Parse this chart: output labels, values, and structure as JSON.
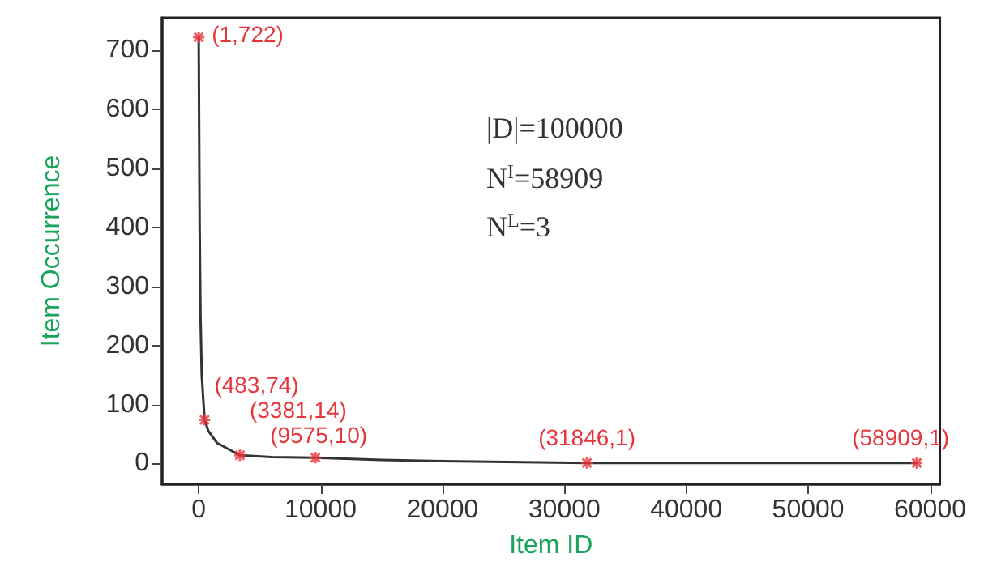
{
  "chart_data": {
    "type": "line",
    "xlabel": "Item ID",
    "ylabel": "Item Occurrence",
    "xlim": [
      -3000,
      60800
    ],
    "xticks": [
      0,
      10000,
      20000,
      30000,
      40000,
      50000,
      60000
    ],
    "ylim": [
      -35,
      755
    ],
    "yticks": [
      0,
      100,
      200,
      300,
      400,
      500,
      600,
      700
    ],
    "grid": false,
    "annotations": [
      "|D|=100000",
      "N$^{I}$=58909",
      "N$^{L}$=3",
      {
        "text": "(1,722)",
        "x": 1,
        "y": 722
      },
      {
        "text": "(483,74)",
        "x": 483,
        "y": 74
      },
      {
        "text": "(3381,14)",
        "x": 3381,
        "y": 14
      },
      {
        "text": "(9575,10)",
        "x": 9575,
        "y": 10
      },
      {
        "text": "(31846,1)",
        "x": 31846,
        "y": 1
      },
      {
        "text": "(58909,1)",
        "x": 58909,
        "y": 1
      }
    ],
    "series": [
      {
        "color": "#333333",
        "marker": "none",
        "line_style": "solid",
        "x": [
          1,
          30,
          80,
          150,
          250,
          483,
          800,
          1500,
          3381,
          6000,
          9575,
          15000,
          20000,
          31846,
          45000,
          58909
        ],
        "values": [
          722,
          600,
          400,
          250,
          150,
          74,
          55,
          35,
          14,
          11,
          10,
          6,
          4,
          1,
          1,
          1
        ]
      },
      {
        "type": "scatter",
        "color": "#e8353a",
        "marker": "cross",
        "x": [
          1,
          483,
          3381,
          9575,
          31846,
          58909
        ],
        "values": [
          722,
          74,
          14,
          10,
          1,
          1
        ]
      }
    ]
  }
}
